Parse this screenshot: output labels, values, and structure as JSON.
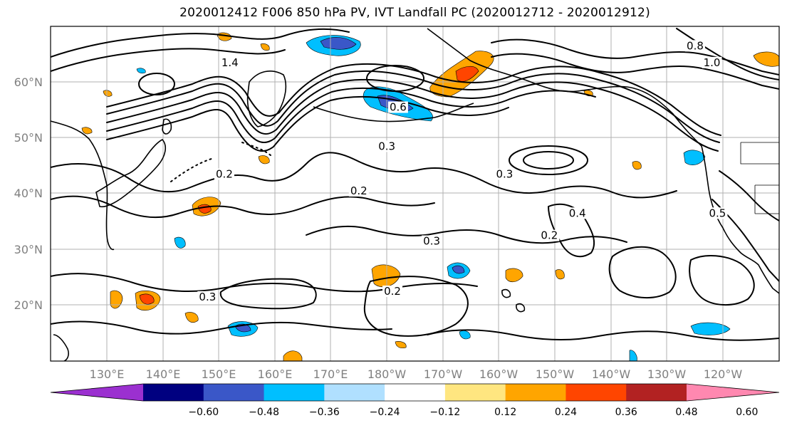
{
  "title": "2020012412 F006 850 hPa PV, IVT Landfall PC (2020012712 - 2020012912)",
  "lat_ticks": [
    "20°N",
    "30°N",
    "40°N",
    "50°N",
    "60°N"
  ],
  "lon_ticks": [
    "130°E",
    "140°E",
    "150°E",
    "160°E",
    "170°E",
    "180°W",
    "170°W",
    "160°W",
    "150°W",
    "140°W",
    "130°W",
    "120°W"
  ],
  "colorbar": {
    "colors": [
      "#9b30d0",
      "#000080",
      "#3a57c8",
      "#00bfff",
      "#b0e0ff",
      "#ffffff",
      "#ffe680",
      "#ffa500",
      "#ff4500",
      "#b22222",
      "#ff88b0"
    ],
    "labels": [
      "−0.60",
      "−0.48",
      "−0.36",
      "−0.24",
      "−0.12",
      "0.12",
      "0.24",
      "0.36",
      "0.48",
      "0.60"
    ]
  },
  "contour_labels": [
    {
      "text": "0.2",
      "lon": 181,
      "lat": 22
    },
    {
      "text": "0.2",
      "lon": 175,
      "lat": 40
    },
    {
      "text": "0.2",
      "lon": 209,
      "lat": 32
    },
    {
      "text": "0.3",
      "lon": 148,
      "lat": 21
    },
    {
      "text": "0.3",
      "lon": 188,
      "lat": 31
    },
    {
      "text": "0.3",
      "lon": 201,
      "lat": 43
    },
    {
      "text": "0.3",
      "lon": 180,
      "lat": 48
    },
    {
      "text": "0.4",
      "lon": 214,
      "lat": 36
    },
    {
      "text": "0.5",
      "lon": 239,
      "lat": 36
    },
    {
      "text": "0.6",
      "lon": 182,
      "lat": 55
    },
    {
      "text": "0.8",
      "lon": 235,
      "lat": 66
    },
    {
      "text": "1.0",
      "lon": 238,
      "lat": 63
    },
    {
      "text": "1.4",
      "lon": 152,
      "lat": 63
    },
    {
      "text": "0.2",
      "lon": 151,
      "lat": 43
    }
  ]
}
